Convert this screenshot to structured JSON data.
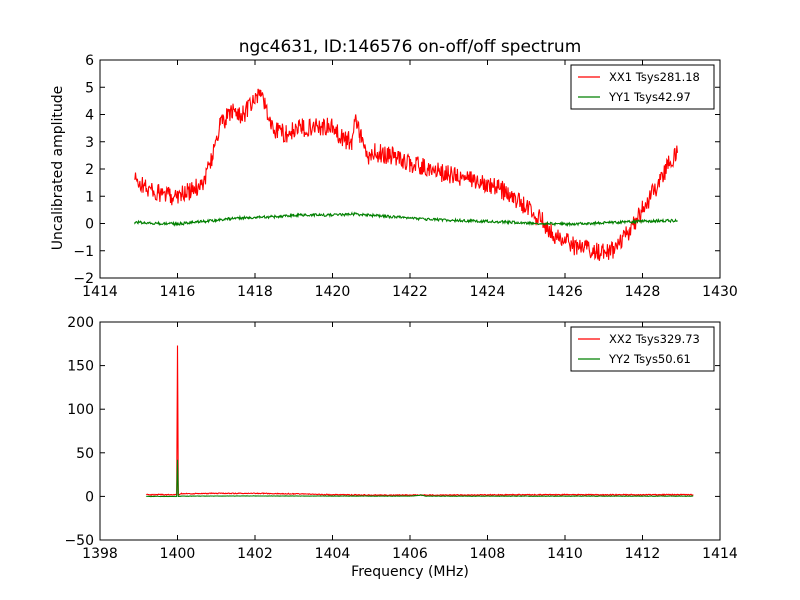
{
  "chart_data": [
    {
      "type": "line",
      "title": "ngc4631, ID:146576 on-off/off spectrum",
      "xlabel": "",
      "ylabel": "Uncalibrated amplitude",
      "xlim": [
        1414,
        1430
      ],
      "ylim": [
        -2,
        6
      ],
      "xticks": [
        1414,
        1416,
        1418,
        1420,
        1422,
        1424,
        1426,
        1428,
        1430
      ],
      "yticks": [
        -2,
        -1,
        0,
        1,
        2,
        3,
        4,
        5,
        6
      ],
      "xtick_labels": [
        "1414",
        "1416",
        "1418",
        "1420",
        "1422",
        "1424",
        "1426",
        "1428",
        "1430"
      ],
      "ytick_labels": [
        "−2",
        "−1",
        "0",
        "1",
        "2",
        "3",
        "4",
        "5",
        "6"
      ],
      "legend_position": "top-right",
      "grid": false,
      "series": [
        {
          "name": "XX1 Tsys281.18",
          "color": "#ff0000",
          "noise": 0.35,
          "x": [
            1414.9,
            1415.2,
            1415.5,
            1415.8,
            1416.1,
            1416.4,
            1416.7,
            1416.9,
            1417.1,
            1417.4,
            1417.7,
            1418.0,
            1418.15,
            1418.4,
            1418.6,
            1418.8,
            1419.2,
            1419.6,
            1420.0,
            1420.3,
            1420.5,
            1420.6,
            1420.7,
            1420.9,
            1421.1,
            1421.5,
            1422.0,
            1422.5,
            1423.0,
            1423.5,
            1424.0,
            1424.3,
            1424.6,
            1425.0,
            1425.4,
            1425.8,
            1426.2,
            1426.5,
            1426.8,
            1427.1,
            1427.4,
            1427.7,
            1428.0,
            1428.3,
            1428.6,
            1428.9
          ],
          "y": [
            1.6,
            1.3,
            1.1,
            1.0,
            1.1,
            1.2,
            1.6,
            2.5,
            3.6,
            4.1,
            4.0,
            4.5,
            4.9,
            3.6,
            3.4,
            3.3,
            3.5,
            3.6,
            3.5,
            3.1,
            3.0,
            4.0,
            3.3,
            2.4,
            2.6,
            2.5,
            2.2,
            2.0,
            1.8,
            1.6,
            1.5,
            1.3,
            1.0,
            0.6,
            0.1,
            -0.5,
            -0.8,
            -0.9,
            -1.0,
            -1.1,
            -0.8,
            -0.2,
            0.5,
            1.2,
            2.0,
            2.6
          ]
        },
        {
          "name": "YY1 Tsys42.97",
          "color": "#008000",
          "noise": 0.05,
          "x": [
            1414.9,
            1415.5,
            1416.0,
            1416.5,
            1417.0,
            1417.5,
            1418.0,
            1418.5,
            1419.0,
            1419.5,
            1420.0,
            1420.5,
            1421.0,
            1421.5,
            1422.0,
            1422.5,
            1423.0,
            1423.5,
            1424.0,
            1424.5,
            1425.0,
            1425.5,
            1426.0,
            1426.5,
            1427.0,
            1427.5,
            1428.0,
            1428.5,
            1428.9
          ],
          "y": [
            0.05,
            0.0,
            -0.02,
            0.05,
            0.12,
            0.2,
            0.22,
            0.25,
            0.3,
            0.32,
            0.3,
            0.35,
            0.3,
            0.25,
            0.2,
            0.15,
            0.12,
            0.1,
            0.08,
            0.05,
            0.02,
            0.0,
            -0.02,
            0.0,
            0.02,
            0.05,
            0.08,
            0.1,
            0.1
          ]
        }
      ]
    },
    {
      "type": "line",
      "title": "",
      "xlabel": "Frequency (MHz)",
      "ylabel": "",
      "xlim": [
        1398,
        1414
      ],
      "ylim": [
        -50,
        200
      ],
      "xticks": [
        1398,
        1400,
        1402,
        1404,
        1406,
        1408,
        1410,
        1412,
        1414
      ],
      "yticks": [
        -50,
        0,
        50,
        100,
        150,
        200
      ],
      "xtick_labels": [
        "1398",
        "1400",
        "1402",
        "1404",
        "1406",
        "1408",
        "1410",
        "1412",
        "1414"
      ],
      "ytick_labels": [
        "−50",
        "0",
        "50",
        "100",
        "150",
        "200"
      ],
      "legend_position": "top-right",
      "grid": false,
      "series": [
        {
          "name": "XX2 Tsys329.73",
          "color": "#ff0000",
          "noise": 0.5,
          "x": [
            1399.2,
            1399.9,
            1399.98,
            1400.0,
            1400.02,
            1400.1,
            1401.0,
            1402.0,
            1403.0,
            1404.0,
            1405.0,
            1406.0,
            1407.0,
            1408.0,
            1409.0,
            1410.0,
            1411.0,
            1412.0,
            1413.3
          ],
          "y": [
            2,
            2,
            2,
            173,
            2,
            3,
            3.5,
            3.5,
            3,
            2,
            1.5,
            1.5,
            1.5,
            1.8,
            2,
            2,
            2,
            2,
            2
          ]
        },
        {
          "name": "YY2 Tsys50.61",
          "color": "#008000",
          "noise": 0.2,
          "x": [
            1399.2,
            1399.9,
            1399.98,
            1400.0,
            1400.02,
            1400.1,
            1402.0,
            1404.0,
            1406.0,
            1406.3,
            1406.4,
            1408.0,
            1410.0,
            1412.0,
            1413.3
          ],
          "y": [
            0,
            0,
            0,
            42,
            0,
            0.3,
            0.5,
            0.4,
            0.3,
            1.5,
            0.3,
            0.3,
            0.3,
            0.3,
            0.3
          ]
        }
      ]
    }
  ]
}
